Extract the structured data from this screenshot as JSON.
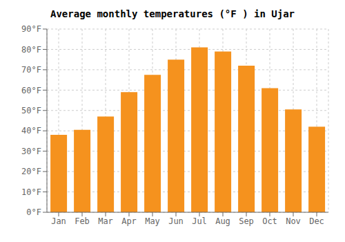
{
  "chart_data": {
    "type": "bar",
    "title": "Average monthly temperatures (°F ) in Ujar",
    "categories": [
      "Jan",
      "Feb",
      "Mar",
      "Apr",
      "May",
      "Jun",
      "Jul",
      "Aug",
      "Sep",
      "Oct",
      "Nov",
      "Dec"
    ],
    "values": [
      38,
      40.5,
      47,
      59,
      67.5,
      75,
      81,
      79,
      72,
      61,
      50.5,
      42
    ],
    "color": "#F5921E",
    "ylim": [
      0,
      90
    ],
    "yticks": [
      {
        "value": 0,
        "label": "0°F"
      },
      {
        "value": 10,
        "label": "10°F"
      },
      {
        "value": 20,
        "label": "20°F"
      },
      {
        "value": 30,
        "label": "30°F"
      },
      {
        "value": 40,
        "label": "40°F"
      },
      {
        "value": 50,
        "label": "50°F"
      },
      {
        "value": 60,
        "label": "60°F"
      },
      {
        "value": 70,
        "label": "70°F"
      },
      {
        "value": 80,
        "label": "80°F"
      },
      {
        "value": 90,
        "label": "90°F"
      }
    ],
    "grid": true
  }
}
